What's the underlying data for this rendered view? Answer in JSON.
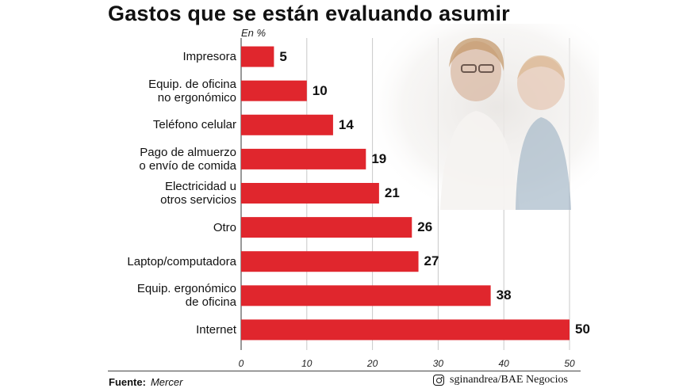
{
  "title": "Gastos que se están evaluando asumir",
  "unit_label": "En %",
  "source": {
    "label": "Fuente:",
    "value": "Mercer"
  },
  "credit": {
    "icon": "instagram-icon",
    "text": "sginandrea/BAE Negocios"
  },
  "colors": {
    "bar": "#e0262d",
    "grid": "#c8c8c8"
  },
  "chart_data": {
    "type": "bar",
    "orientation": "horizontal",
    "title": "Gastos que se están evaluando asumir",
    "unit": "En %",
    "categories": [
      "Impresora",
      "Equip. de oficina\nno ergonómico",
      "Teléfono celular",
      "Pago de almuerzo\no envío de comida",
      "Electricidad u\notros servicios",
      "Otro",
      "Laptop/computadora",
      "Equip. ergonómico\nde oficina",
      "Internet"
    ],
    "values": [
      5,
      10,
      14,
      19,
      21,
      26,
      27,
      38,
      50
    ],
    "value_labels": [
      "5",
      "10",
      "14",
      "19",
      "21",
      "26",
      "27",
      "38",
      "50"
    ],
    "xlim": [
      0,
      50
    ],
    "xticks": [
      0,
      10,
      20,
      30,
      40,
      50
    ],
    "xtick_labels": [
      "0",
      "10",
      "20",
      "30",
      "40",
      "50"
    ],
    "grid": true
  }
}
